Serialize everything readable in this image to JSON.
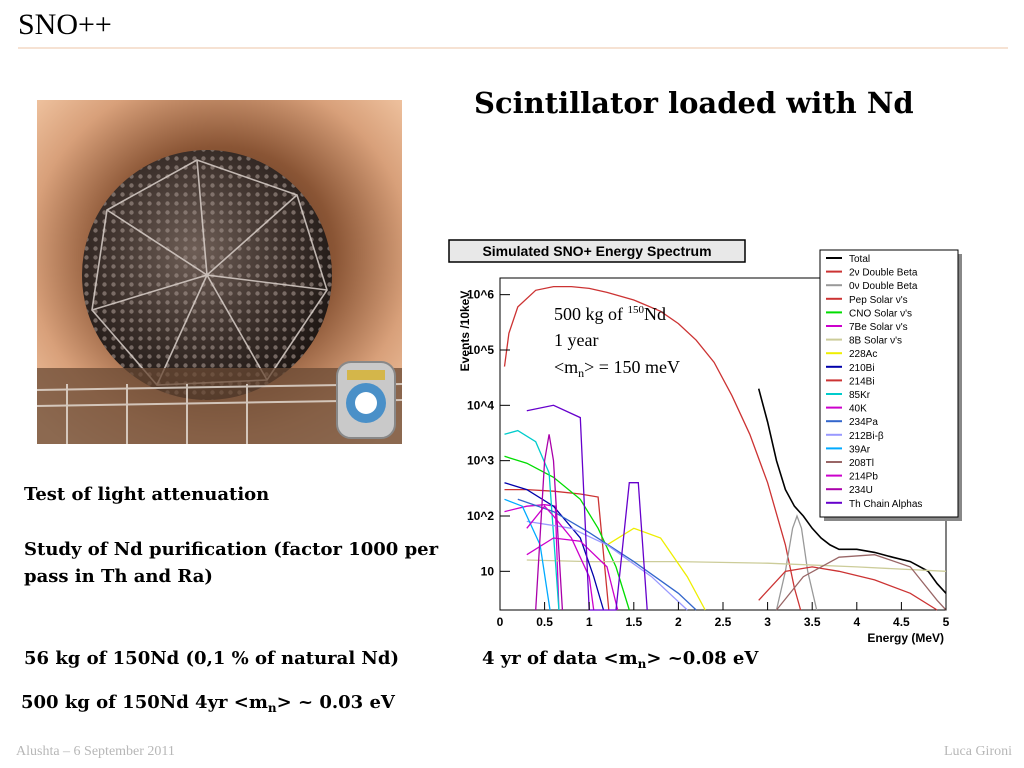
{
  "slide": {
    "title": "SNO++",
    "heading": "Scintillator loaded with Nd",
    "footer_left": "Alushta – 6 September 2011",
    "footer_right": "Luca Gironi"
  },
  "bullets": {
    "b1": "Test of light attenuation",
    "b2": "Study of Nd purification (factor 1000 per pass in Th and Ra)",
    "b3": "56 kg of 150Nd (0,1 % of natural Nd)",
    "b4_pre": "4 yr of data   <m",
    "b4_sub": "n",
    "b4_post": "> ~0.08 eV",
    "b5_pre": "500 kg of 150Nd 4yr  <m",
    "b5_sub": "n",
    "b5_post": "> ~ 0.03 eV"
  },
  "chart_data": {
    "type": "line",
    "title": "Simulated SNO+ Energy Spectrum",
    "xlabel": "Energy (MeV)",
    "ylabel": "Events /10keV",
    "xlim": [
      0,
      5
    ],
    "ylim": [
      2,
      2000000
    ],
    "yscale": "log",
    "x_ticks": [
      "0",
      "0.5",
      "1",
      "1.5",
      "2",
      "2.5",
      "3",
      "3.5",
      "4",
      "4.5",
      "5"
    ],
    "y_ticks": [
      "10",
      "10^2",
      "10^3",
      "10^4",
      "10^5",
      "10^6"
    ],
    "annotation": {
      "line1_pre": "500 kg of ",
      "line1_sup": "150",
      "line1_post": "Nd",
      "line2": "1 year",
      "line3_pre": "<m",
      "line3_sub": "n",
      "line3_post": "> = 150 meV"
    },
    "legend_position": "top-right",
    "series": [
      {
        "name": "Total",
        "color": "#000000",
        "points": [
          [
            2.9,
            20000
          ],
          [
            3.0,
            5000
          ],
          [
            3.1,
            1000
          ],
          [
            3.2,
            300
          ],
          [
            3.3,
            150
          ],
          [
            3.4,
            100
          ],
          [
            3.5,
            60
          ],
          [
            3.6,
            40
          ],
          [
            3.7,
            30
          ],
          [
            3.8,
            25
          ],
          [
            4.0,
            25
          ],
          [
            4.2,
            22
          ],
          [
            4.4,
            18
          ],
          [
            4.6,
            15
          ],
          [
            4.8,
            10
          ],
          [
            4.9,
            6
          ],
          [
            5.0,
            4
          ]
        ]
      },
      {
        "name": "2ν Double Beta",
        "color": "#cc3333",
        "points": [
          [
            0.05,
            50000
          ],
          [
            0.1,
            200000
          ],
          [
            0.2,
            600000
          ],
          [
            0.4,
            1200000
          ],
          [
            0.6,
            1400000
          ],
          [
            0.8,
            1400000
          ],
          [
            1.0,
            1300000
          ],
          [
            1.2,
            1100000
          ],
          [
            1.5,
            800000
          ],
          [
            1.8,
            500000
          ],
          [
            2.0,
            300000
          ],
          [
            2.2,
            150000
          ],
          [
            2.4,
            60000
          ],
          [
            2.6,
            15000
          ],
          [
            2.8,
            3000
          ],
          [
            3.0,
            400
          ],
          [
            3.2,
            30
          ],
          [
            3.3,
            5
          ],
          [
            3.37,
            2
          ]
        ]
      },
      {
        "name": "0ν Double Beta",
        "color": "#999999",
        "points": [
          [
            3.1,
            2
          ],
          [
            3.2,
            10
          ],
          [
            3.28,
            60
          ],
          [
            3.33,
            100
          ],
          [
            3.38,
            60
          ],
          [
            3.45,
            10
          ],
          [
            3.55,
            2
          ]
        ]
      },
      {
        "name": "Pep Solar ν's",
        "color": "#cc3333",
        "points": [
          [
            0.05,
            300
          ],
          [
            0.3,
            300
          ],
          [
            0.6,
            280
          ],
          [
            0.9,
            250
          ],
          [
            1.1,
            220
          ],
          [
            1.22,
            2
          ]
        ]
      },
      {
        "name": "CNO Solar ν's",
        "color": "#00dd00",
        "points": [
          [
            0.05,
            1200
          ],
          [
            0.3,
            900
          ],
          [
            0.6,
            500
          ],
          [
            0.9,
            200
          ],
          [
            1.1,
            60
          ],
          [
            1.3,
            12
          ],
          [
            1.45,
            2
          ]
        ]
      },
      {
        "name": "7Be Solar ν's",
        "color": "#cc00cc",
        "points": [
          [
            0.05,
            120
          ],
          [
            0.3,
            150
          ],
          [
            0.5,
            160
          ],
          [
            0.62,
            150
          ],
          [
            0.66,
            2
          ]
        ]
      },
      {
        "name": "8B Solar ν's",
        "color": "#cccc99",
        "points": [
          [
            0.3,
            16
          ],
          [
            1.0,
            15
          ],
          [
            2.0,
            15
          ],
          [
            3.0,
            14
          ],
          [
            4.0,
            12
          ],
          [
            5.0,
            10
          ]
        ]
      },
      {
        "name": "228Ac",
        "color": "#eeee00",
        "points": [
          [
            1.2,
            30
          ],
          [
            1.5,
            60
          ],
          [
            1.8,
            40
          ],
          [
            2.1,
            8
          ],
          [
            2.3,
            2
          ]
        ]
      },
      {
        "name": "210Bi",
        "color": "#0000aa",
        "points": [
          [
            0.05,
            400
          ],
          [
            0.3,
            300
          ],
          [
            0.6,
            150
          ],
          [
            0.9,
            40
          ],
          [
            1.05,
            8
          ],
          [
            1.16,
            2
          ]
        ]
      },
      {
        "name": "214Bi",
        "color": "#cc3333",
        "points": [
          [
            2.9,
            3
          ],
          [
            3.2,
            10
          ],
          [
            3.5,
            12
          ],
          [
            3.8,
            10
          ],
          [
            4.2,
            7
          ],
          [
            4.6,
            4
          ],
          [
            4.9,
            2
          ]
        ]
      },
      {
        "name": "85Kr",
        "color": "#00cccc",
        "points": [
          [
            0.05,
            3000
          ],
          [
            0.2,
            3500
          ],
          [
            0.4,
            2200
          ],
          [
            0.55,
            600
          ],
          [
            0.66,
            2
          ]
        ]
      },
      {
        "name": "40K",
        "color": "#cc00cc",
        "points": [
          [
            0.3,
            20
          ],
          [
            0.6,
            40
          ],
          [
            0.9,
            35
          ],
          [
            1.2,
            12
          ],
          [
            1.32,
            2
          ]
        ]
      },
      {
        "name": "234Pa",
        "color": "#3366cc",
        "points": [
          [
            0.2,
            200
          ],
          [
            0.6,
            120
          ],
          [
            1.0,
            50
          ],
          [
            1.5,
            15
          ],
          [
            2.0,
            4
          ],
          [
            2.2,
            2
          ]
        ]
      },
      {
        "name": "212Bi-β",
        "color": "#9999ff",
        "points": [
          [
            0.3,
            80
          ],
          [
            0.8,
            60
          ],
          [
            1.2,
            30
          ],
          [
            1.7,
            8
          ],
          [
            2.1,
            2
          ]
        ]
      },
      {
        "name": "39Ar",
        "color": "#00aaff",
        "points": [
          [
            0.05,
            200
          ],
          [
            0.25,
            150
          ],
          [
            0.45,
            30
          ],
          [
            0.56,
            2
          ]
        ]
      },
      {
        "name": "208Tl",
        "color": "#996666",
        "points": [
          [
            3.1,
            2
          ],
          [
            3.4,
            8
          ],
          [
            3.8,
            18
          ],
          [
            4.2,
            20
          ],
          [
            4.6,
            12
          ],
          [
            4.9,
            3
          ],
          [
            5.0,
            2
          ]
        ]
      },
      {
        "name": "214Pb",
        "color": "#cc00cc",
        "points": [
          [
            0.3,
            60
          ],
          [
            0.5,
            150
          ],
          [
            0.6,
            100
          ],
          [
            0.8,
            40
          ],
          [
            1.0,
            8
          ],
          [
            1.05,
            2
          ]
        ]
      },
      {
        "name": "234U",
        "color": "#aa00aa",
        "points": [
          [
            0.4,
            2
          ],
          [
            0.5,
            1000
          ],
          [
            0.55,
            3000
          ],
          [
            0.6,
            1000
          ],
          [
            0.7,
            2
          ]
        ]
      },
      {
        "name": "Th Chain Alphas",
        "color": "#6600cc",
        "points": [
          [
            0.3,
            8000
          ],
          [
            0.6,
            10000
          ],
          [
            0.9,
            6000
          ],
          [
            1.0,
            2
          ],
          [
            1.3,
            2
          ],
          [
            1.45,
            400
          ],
          [
            1.55,
            400
          ],
          [
            1.65,
            2
          ]
        ]
      }
    ]
  }
}
